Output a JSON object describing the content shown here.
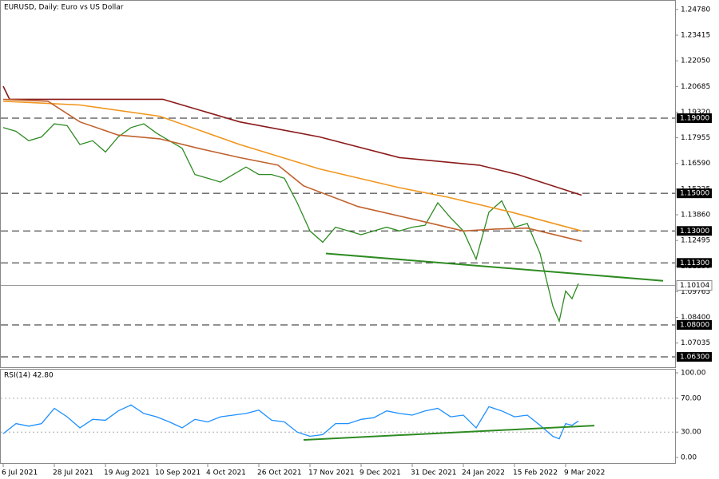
{
  "chart_data": [
    {
      "type": "line",
      "title": "EURUSD, Daily:  Euro vs US Dollar",
      "xlim": [
        0,
        210
      ],
      "ylim": [
        1.0575,
        1.252
      ],
      "yticks": [
        {
          "value": 1.2478,
          "label": "1.24780"
        },
        {
          "value": 1.23415,
          "label": "1.23415"
        },
        {
          "value": 1.2205,
          "label": "1.22050"
        },
        {
          "value": 1.20685,
          "label": "1.20685"
        },
        {
          "value": 1.1932,
          "label": "1.19320"
        },
        {
          "value": 1.17955,
          "label": "1.17955"
        },
        {
          "value": 1.1659,
          "label": "1.16590"
        },
        {
          "value": 1.15225,
          "label": "1.15225"
        },
        {
          "value": 1.1386,
          "label": "1.13860"
        },
        {
          "value": 1.12495,
          "label": "1.12495"
        },
        {
          "value": 1.1113,
          "label": "1.11130"
        },
        {
          "value": 1.09765,
          "label": "1.09765"
        },
        {
          "value": 1.084,
          "label": "1.08400"
        },
        {
          "value": 1.07035,
          "label": "1.07035"
        }
      ],
      "levels": [
        {
          "value": 1.19,
          "label": "1.19000"
        },
        {
          "value": 1.15,
          "label": "1.15000"
        },
        {
          "value": 1.13,
          "label": "1.13000"
        },
        {
          "value": 1.113,
          "label": "1.11300"
        },
        {
          "value": 1.08,
          "label": "1.08000"
        },
        {
          "value": 1.063,
          "label": "1.06300"
        }
      ],
      "current_price": {
        "value": 1.10104,
        "label": "1.10104"
      },
      "trendline": {
        "x": [
          101,
          206.5
        ],
        "values": [
          1.118,
          1.1035
        ],
        "color": "#2e8b22"
      },
      "series": [
        {
          "color": "#2e8b22",
          "x": [
            0,
            4,
            8,
            12,
            16,
            20,
            24,
            28,
            32,
            36,
            40,
            44,
            48,
            52,
            56,
            60,
            64,
            68,
            72,
            76,
            80,
            84,
            88,
            92,
            96,
            100,
            104,
            108,
            112,
            116,
            120,
            124,
            128,
            132,
            136,
            140,
            144,
            148,
            152,
            156,
            160,
            164,
            168,
            172,
            174,
            176,
            178,
            180
          ],
          "values": [
            1.185,
            1.183,
            1.178,
            1.18,
            1.187,
            1.186,
            1.176,
            1.178,
            1.172,
            1.18,
            1.185,
            1.187,
            1.182,
            1.178,
            1.174,
            1.16,
            1.158,
            1.156,
            1.16,
            1.164,
            1.16,
            1.16,
            1.158,
            1.145,
            1.13,
            1.124,
            1.132,
            1.13,
            1.128,
            1.13,
            1.132,
            1.13,
            1.132,
            1.133,
            1.145,
            1.137,
            1.13,
            1.115,
            1.14,
            1.146,
            1.132,
            1.134,
            1.118,
            1.09,
            1.082,
            1.098,
            1.094,
            1.102
          ]
        },
        {
          "color": "#8b1a1a",
          "x": [
            0,
            2,
            50,
            74,
            99,
            124,
            149,
            161,
            181
          ],
          "values": [
            1.207,
            1.2,
            1.2,
            1.188,
            1.18,
            1.169,
            1.165,
            1.16,
            1.149
          ]
        },
        {
          "color": "#f0961e",
          "x": [
            0,
            24,
            49,
            74,
            99,
            124,
            139,
            159,
            181
          ],
          "values": [
            1.199,
            1.197,
            1.191,
            1.176,
            1.163,
            1.153,
            1.148,
            1.14,
            1.13
          ]
        },
        {
          "color": "#c0622d",
          "x": [
            0,
            14,
            24,
            36,
            49,
            61,
            74,
            86,
            94,
            111,
            129,
            144,
            154,
            164,
            181
          ],
          "values": [
            1.2,
            1.199,
            1.188,
            1.181,
            1.179,
            1.174,
            1.169,
            1.165,
            1.154,
            1.143,
            1.136,
            1.13,
            1.131,
            1.1315,
            1.1245
          ]
        }
      ]
    },
    {
      "type": "line",
      "title": "RSI(14) 42.80",
      "xlim": [
        0,
        210
      ],
      "ylim": [
        -6.6,
        103.8
      ],
      "xticks": [
        {
          "value": 0,
          "label": "6 Jul 2021"
        },
        {
          "value": 16,
          "label": "28 Jul 2021"
        },
        {
          "value": 32,
          "label": "19 Aug 2021"
        },
        {
          "value": 48,
          "label": "10 Sep 2021"
        },
        {
          "value": 64,
          "label": "4 Oct 2021"
        },
        {
          "value": 80,
          "label": "26 Oct 2021"
        },
        {
          "value": 96,
          "label": "17 Nov 2021"
        },
        {
          "value": 112,
          "label": "9 Dec 2021"
        },
        {
          "value": 128,
          "label": "31 Dec 2021"
        },
        {
          "value": 144,
          "label": "24 Jan 2022"
        },
        {
          "value": 160,
          "label": "15 Feb 2022"
        },
        {
          "value": 176,
          "label": "9 Mar 2022"
        }
      ],
      "yticks": [
        {
          "value": 100,
          "label": "100.00"
        },
        {
          "value": 70,
          "label": "70.00"
        },
        {
          "value": 30,
          "label": "30.00"
        },
        {
          "value": 0,
          "label": "0.00"
        }
      ],
      "dotted_levels": [
        70,
        30
      ],
      "trendline": {
        "x": [
          94,
          185
        ],
        "values": [
          20.8,
          37.7
        ],
        "color": "#2e8b22"
      },
      "series": [
        {
          "color": "#1e90ff",
          "x": [
            0,
            4,
            8,
            12,
            16,
            20,
            24,
            28,
            32,
            36,
            40,
            44,
            48,
            52,
            56,
            60,
            64,
            68,
            72,
            76,
            80,
            84,
            88,
            92,
            96,
            100,
            104,
            108,
            112,
            116,
            120,
            124,
            128,
            132,
            136,
            140,
            144,
            148,
            152,
            156,
            160,
            164,
            168,
            172,
            174,
            176,
            178,
            180
          ],
          "values": [
            28,
            40,
            37,
            40,
            58,
            48,
            35,
            45,
            44,
            55,
            62,
            52,
            48,
            42,
            35,
            45,
            42,
            48,
            50,
            52,
            56,
            44,
            42,
            30,
            25,
            27,
            40,
            40,
            45,
            47,
            55,
            52,
            50,
            55,
            58,
            48,
            50,
            35,
            60,
            55,
            48,
            50,
            38,
            25,
            22,
            40,
            38,
            43
          ]
        }
      ]
    }
  ]
}
